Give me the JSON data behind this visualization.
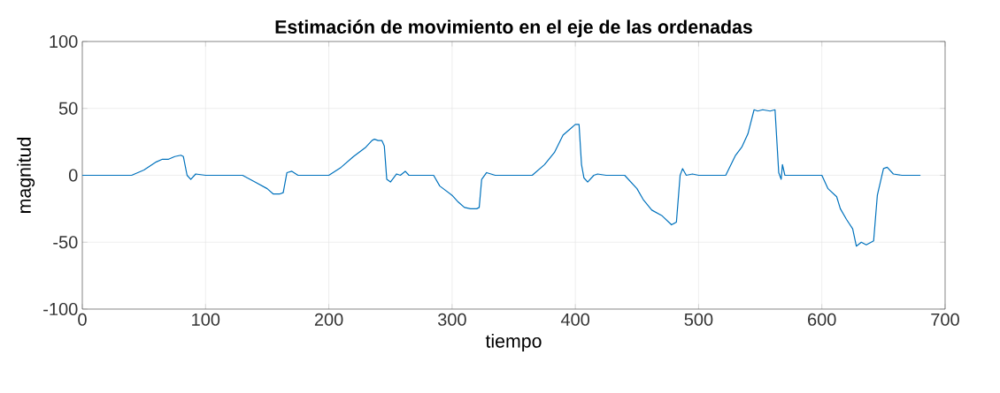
{
  "chart_data": {
    "type": "line",
    "title": "Estimación de movimiento en el eje de las ordenadas",
    "xlabel": "tiempo",
    "ylabel": "magnitud",
    "x": [
      0,
      40,
      50,
      60,
      65,
      70,
      75,
      80,
      82,
      85,
      88,
      92,
      100,
      130,
      140,
      150,
      155,
      160,
      163,
      166,
      170,
      175,
      200,
      210,
      220,
      230,
      235,
      237,
      240,
      243,
      245,
      247,
      250,
      255,
      258,
      262,
      265,
      285,
      290,
      300,
      305,
      310,
      315,
      320,
      322,
      324,
      328,
      335,
      365,
      375,
      383,
      390,
      395,
      400,
      403,
      405,
      407,
      410,
      415,
      418,
      425,
      440,
      450,
      455,
      462,
      470,
      478,
      482,
      485,
      487,
      490,
      495,
      500,
      522,
      530,
      535,
      540,
      545,
      548,
      552,
      558,
      562,
      565,
      567,
      568,
      570,
      600,
      605,
      612,
      615,
      620,
      625,
      628,
      632,
      636,
      642,
      645,
      650,
      653,
      658,
      665,
      680
    ],
    "series": [
      {
        "color": "#0072bd",
        "values": [
          0,
          0,
          4,
          10,
          12,
          12,
          14,
          15,
          14,
          0,
          -3,
          1,
          0,
          0,
          -5,
          -10,
          -14,
          -14,
          -13,
          2,
          3,
          0,
          0,
          6,
          14,
          21,
          26,
          27,
          26,
          26,
          22,
          -3,
          -5,
          1,
          0,
          3,
          0,
          0,
          -8,
          -15,
          -20,
          -24,
          -25,
          -25,
          -24,
          -3,
          2,
          0,
          0,
          8,
          17,
          30,
          34,
          38,
          38,
          8,
          -2,
          -5,
          0,
          1,
          0,
          0,
          -10,
          -18,
          -26,
          -30,
          -37,
          -35,
          0,
          5,
          0,
          1,
          0,
          0,
          15,
          21,
          31,
          49,
          48,
          49,
          48,
          49,
          2,
          -3,
          8,
          0,
          0,
          -10,
          -16,
          -25,
          -33,
          -40,
          -53,
          -50,
          -52,
          -49,
          -15,
          5,
          6,
          1,
          0,
          0
        ]
      }
    ],
    "xlim": [
      0,
      700
    ],
    "ylim": [
      -100,
      100
    ],
    "xticks": [
      0,
      100,
      200,
      300,
      400,
      500,
      600,
      700
    ],
    "yticks": [
      -100,
      -50,
      0,
      50,
      100
    ],
    "grid": true
  }
}
